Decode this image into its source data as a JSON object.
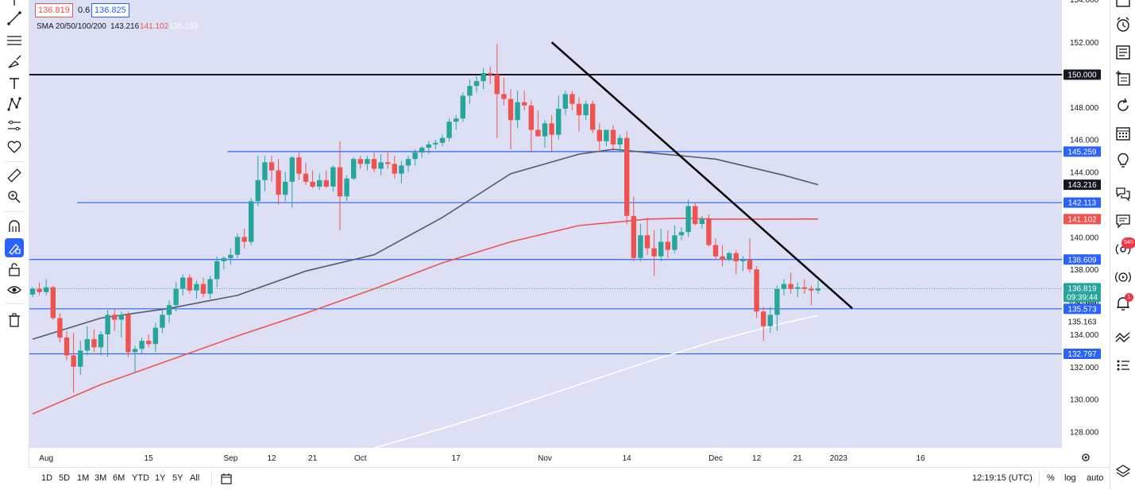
{
  "header": {
    "bid": "136.819",
    "spread": "0.6",
    "ask": "136.825",
    "sma_label": "SMA 20/50/100/200",
    "sma_values": {
      "sma50": "143.216",
      "sma100": "141.102",
      "sma200": "135.163"
    }
  },
  "colors": {
    "bg": "#dde0f5",
    "up": "#26a69a",
    "down": "#ef5350",
    "hline": "#2962ff",
    "sma50": "#555a66",
    "sma100": "#ef5350",
    "sma200": "#ffffff",
    "trend": "#000000",
    "black_level": "#131722"
  },
  "price_labels": {
    "level_150": "150.000",
    "level_145": "145.259",
    "sma50": "143.216",
    "level_142": "142.113",
    "sma100": "141.102",
    "level_138": "138.609",
    "last_price": "136.819",
    "countdown": "09:39:44",
    "level_135": "135.573",
    "sma200": "135.163",
    "level_132": "132.797",
    "partial_top": "154.000",
    "partial_hidden": "136.000"
  },
  "bottom_bar": {
    "timeframes": [
      "1D",
      "5D",
      "1M",
      "3M",
      "6M",
      "YTD",
      "1Y",
      "5Y",
      "All"
    ],
    "clock": "12:19:15 (UTC)",
    "percent": "%",
    "log": "log",
    "auto": "auto"
  },
  "right_toolbar": {
    "badge_ideas": "545",
    "badge_alerts": "1"
  },
  "chart_data": {
    "type": "candlestick",
    "title": "",
    "y_axis": {
      "range": [
        127.0,
        154.6
      ],
      "ticks": [
        "128.000",
        "130.000",
        "132.000",
        "134.000",
        "136.000",
        "138.000",
        "140.000",
        "142.000",
        "144.000",
        "146.000",
        "148.000",
        "150.000",
        "152.000"
      ]
    },
    "x_axis": {
      "labels": [
        "Aug",
        "15",
        "Sep",
        "12",
        "21",
        "Oct",
        "17",
        "Nov",
        "14",
        "Dec",
        "12",
        "21",
        "2023",
        "16"
      ],
      "label_bar_index": [
        2,
        17,
        29,
        35,
        41,
        48,
        62,
        75,
        87,
        100,
        106,
        112,
        118,
        130
      ]
    },
    "candles": [
      [
        136.45,
        136.9,
        136.3,
        136.8
      ],
      [
        136.8,
        137.2,
        136.4,
        136.6
      ],
      [
        136.6,
        137.4,
        136.4,
        136.9
      ],
      [
        136.9,
        137.0,
        134.9,
        135.0
      ],
      [
        135.0,
        135.3,
        133.5,
        133.8
      ],
      [
        133.8,
        134.2,
        132.4,
        132.7
      ],
      [
        132.7,
        134.1,
        130.4,
        132.0
      ],
      [
        132.0,
        133.6,
        131.5,
        133.0
      ],
      [
        133.0,
        134.5,
        132.7,
        133.7
      ],
      [
        133.7,
        134.3,
        132.9,
        133.2
      ],
      [
        133.2,
        134.2,
        132.7,
        134.0
      ],
      [
        134.0,
        135.5,
        132.6,
        135.2
      ],
      [
        135.2,
        135.6,
        134.2,
        134.9
      ],
      [
        134.9,
        135.4,
        133.8,
        135.2
      ],
      [
        135.2,
        135.4,
        132.6,
        132.9
      ],
      [
        132.9,
        133.3,
        131.6,
        133.1
      ],
      [
        133.1,
        133.8,
        132.8,
        133.6
      ],
      [
        133.6,
        134.0,
        133.2,
        133.4
      ],
      [
        133.4,
        134.7,
        132.9,
        134.4
      ],
      [
        134.4,
        135.5,
        134.1,
        135.2
      ],
      [
        135.2,
        136.1,
        134.7,
        135.8
      ],
      [
        135.8,
        137.2,
        135.4,
        136.8
      ],
      [
        136.8,
        137.7,
        136.4,
        137.5
      ],
      [
        137.5,
        137.7,
        136.5,
        136.7
      ],
      [
        136.7,
        137.3,
        136.2,
        137.1
      ],
      [
        137.1,
        137.5,
        136.3,
        136.5
      ],
      [
        136.5,
        137.6,
        136.2,
        137.4
      ],
      [
        137.4,
        138.8,
        136.9,
        138.5
      ],
      [
        138.5,
        138.8,
        138.0,
        138.7
      ],
      [
        138.7,
        139.3,
        138.3,
        138.9
      ],
      [
        138.9,
        140.2,
        138.7,
        140.0
      ],
      [
        140.0,
        140.5,
        139.3,
        139.7
      ],
      [
        139.7,
        142.4,
        139.5,
        142.2
      ],
      [
        142.2,
        145.0,
        141.9,
        143.5
      ],
      [
        143.5,
        145.0,
        142.8,
        144.6
      ],
      [
        144.6,
        145.0,
        143.4,
        144.1
      ],
      [
        144.1,
        144.8,
        142.0,
        142.6
      ],
      [
        142.6,
        144.0,
        142.2,
        143.4
      ],
      [
        143.4,
        145.0,
        141.8,
        144.9
      ],
      [
        144.9,
        145.2,
        143.5,
        143.9
      ],
      [
        143.9,
        144.6,
        143.2,
        143.4
      ],
      [
        143.4,
        144.1,
        143.0,
        143.1
      ],
      [
        143.1,
        143.9,
        142.9,
        143.5
      ],
      [
        143.5,
        144.1,
        143.0,
        143.1
      ],
      [
        143.1,
        144.4,
        142.8,
        144.3
      ],
      [
        144.3,
        145.9,
        140.4,
        142.5
      ],
      [
        142.5,
        143.8,
        142.2,
        143.6
      ],
      [
        143.6,
        144.9,
        143.5,
        144.8
      ],
      [
        144.8,
        145.0,
        144.2,
        144.5
      ],
      [
        144.5,
        145.0,
        144.1,
        144.8
      ],
      [
        144.8,
        145.2,
        144.0,
        144.2
      ],
      [
        144.2,
        145.1,
        143.8,
        144.6
      ],
      [
        144.6,
        145.3,
        144.2,
        144.5
      ],
      [
        144.5,
        145.0,
        143.6,
        143.9
      ],
      [
        143.9,
        144.7,
        143.3,
        144.4
      ],
      [
        144.4,
        145.0,
        144.0,
        144.8
      ],
      [
        144.8,
        145.4,
        144.4,
        145.2
      ],
      [
        145.2,
        145.6,
        144.9,
        145.5
      ],
      [
        145.5,
        145.9,
        145.1,
        145.7
      ],
      [
        145.7,
        146.0,
        145.4,
        145.8
      ],
      [
        145.8,
        146.3,
        145.6,
        146.1
      ],
      [
        146.1,
        147.3,
        145.9,
        147.1
      ],
      [
        147.1,
        147.5,
        146.6,
        147.3
      ],
      [
        147.3,
        148.9,
        147.1,
        148.7
      ],
      [
        148.7,
        149.7,
        148.2,
        149.3
      ],
      [
        149.3,
        149.9,
        148.9,
        149.6
      ],
      [
        149.6,
        150.4,
        149.1,
        150.1
      ],
      [
        150.1,
        150.5,
        149.4,
        150.0
      ],
      [
        150.0,
        151.9,
        146.1,
        148.8
      ],
      [
        148.8,
        149.8,
        148.1,
        148.5
      ],
      [
        148.5,
        149.1,
        145.4,
        147.2
      ],
      [
        147.2,
        149.0,
        146.7,
        148.3
      ],
      [
        148.3,
        149.0,
        147.8,
        148.1
      ],
      [
        148.1,
        148.4,
        145.2,
        146.6
      ],
      [
        146.6,
        147.8,
        146.2,
        146.2
      ],
      [
        146.2,
        147.2,
        145.5,
        147.0
      ],
      [
        147.0,
        147.5,
        145.3,
        146.3
      ],
      [
        146.3,
        148.7,
        146.0,
        147.9
      ],
      [
        147.9,
        149.0,
        147.5,
        148.8
      ],
      [
        148.8,
        149.0,
        147.8,
        148.2
      ],
      [
        148.2,
        148.6,
        146.5,
        147.5
      ],
      [
        147.5,
        148.4,
        147.2,
        148.2
      ],
      [
        148.2,
        148.4,
        146.4,
        146.6
      ],
      [
        146.6,
        147.0,
        145.2,
        145.9
      ],
      [
        145.9,
        146.6,
        145.6,
        146.6
      ],
      [
        146.6,
        146.9,
        145.3,
        145.7
      ],
      [
        145.7,
        146.3,
        145.2,
        146.1
      ],
      [
        146.1,
        146.5,
        140.8,
        141.3
      ],
      [
        141.3,
        142.5,
        138.5,
        138.7
      ],
      [
        138.7,
        140.8,
        138.5,
        140.1
      ],
      [
        140.1,
        141.2,
        138.9,
        139.3
      ],
      [
        139.3,
        140.4,
        137.6,
        138.8
      ],
      [
        138.8,
        140.5,
        138.5,
        139.7
      ],
      [
        139.7,
        140.4,
        138.7,
        139.2
      ],
      [
        139.2,
        140.7,
        139.0,
        140.1
      ],
      [
        140.1,
        140.6,
        139.8,
        140.3
      ],
      [
        140.3,
        142.3,
        140.0,
        141.9
      ],
      [
        141.9,
        142.1,
        140.7,
        140.8
      ],
      [
        140.8,
        141.3,
        140.5,
        141.1
      ],
      [
        141.1,
        141.4,
        139.4,
        139.5
      ],
      [
        139.5,
        139.9,
        138.6,
        138.8
      ],
      [
        138.8,
        139.5,
        138.2,
        138.6
      ],
      [
        138.6,
        139.1,
        138.5,
        139.0
      ],
      [
        139.0,
        139.2,
        137.7,
        138.5
      ],
      [
        138.5,
        138.8,
        137.9,
        138.6
      ],
      [
        138.6,
        139.9,
        137.8,
        138.0
      ],
      [
        138.0,
        138.2,
        135.0,
        135.4
      ],
      [
        135.4,
        135.7,
        133.6,
        134.5
      ],
      [
        134.5,
        135.7,
        134.1,
        135.2
      ],
      [
        135.2,
        137.0,
        134.2,
        136.8
      ],
      [
        136.8,
        137.4,
        136.4,
        137.1
      ],
      [
        137.1,
        137.8,
        136.5,
        136.8
      ],
      [
        136.8,
        137.2,
        136.3,
        136.9
      ],
      [
        136.9,
        137.4,
        136.5,
        136.8
      ],
      [
        136.8,
        137.0,
        135.8,
        136.7
      ],
      [
        136.7,
        137.3,
        136.5,
        136.82
      ]
    ],
    "series": [
      {
        "name": "SMA 50",
        "color": "#555a66",
        "x": [
          0,
          10,
          20,
          30,
          40,
          50,
          60,
          70,
          80,
          85,
          90,
          100,
          110,
          115
        ],
        "y": [
          133.7,
          135.0,
          135.6,
          136.4,
          137.9,
          138.9,
          141.2,
          143.9,
          145.1,
          145.4,
          145.2,
          144.8,
          143.8,
          143.216
        ]
      },
      {
        "name": "SMA 100",
        "color": "#ef5350",
        "x": [
          0,
          10,
          20,
          30,
          40,
          50,
          60,
          70,
          80,
          90,
          95,
          100,
          110,
          115
        ],
        "y": [
          129.1,
          130.9,
          132.4,
          133.9,
          135.3,
          136.8,
          138.4,
          139.7,
          140.7,
          141.1,
          141.15,
          141.1,
          141.1,
          141.102
        ]
      },
      {
        "name": "SMA 200",
        "color": "#ffffff",
        "x": [
          50,
          60,
          70,
          80,
          90,
          100,
          110,
          115
        ],
        "y": [
          127.0,
          128.2,
          129.5,
          130.9,
          132.3,
          133.6,
          134.7,
          135.163
        ]
      }
    ],
    "horizontal_levels": [
      {
        "value": 150.0,
        "color": "#131722",
        "from_bar": 0
      },
      {
        "value": 145.259,
        "color": "#2962ff",
        "from_bar": 29
      },
      {
        "value": 142.113,
        "color": "#2962ff",
        "from_bar": 7
      },
      {
        "value": 138.609,
        "color": "#2962ff",
        "from_bar": 0
      },
      {
        "value": 135.573,
        "color": "#2962ff",
        "from_bar": 0
      },
      {
        "value": 132.797,
        "color": "#2962ff",
        "from_bar": 0
      }
    ],
    "trendline": {
      "from": [
        76.0,
        152.0
      ],
      "to": [
        120.0,
        135.6
      ]
    },
    "last_price_line": 136.819,
    "grid": false
  }
}
